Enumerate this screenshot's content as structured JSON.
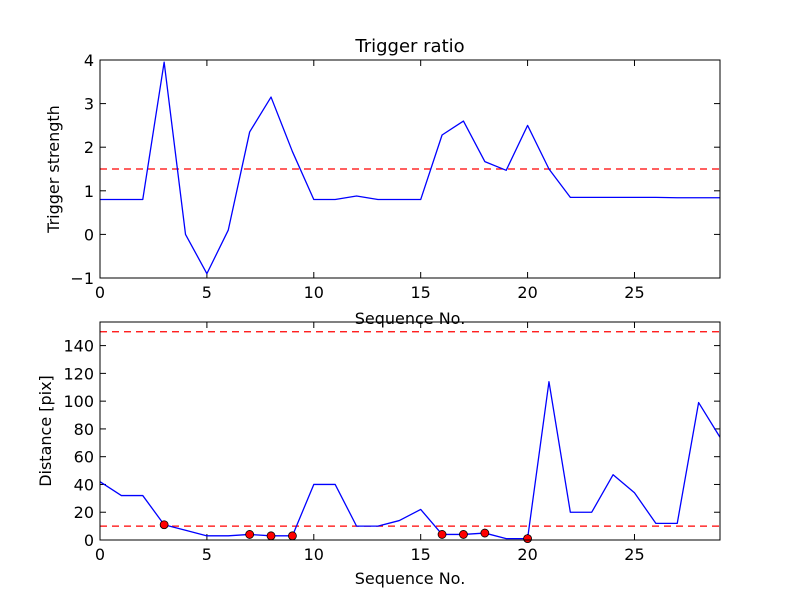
{
  "chart_data": [
    {
      "type": "line",
      "title": "Trigger ratio",
      "xlabel": "Sequence No.",
      "ylabel": "Trigger strength",
      "xlim": [
        0,
        29
      ],
      "ylim": [
        -1,
        4
      ],
      "xticks": [
        0,
        5,
        10,
        15,
        20,
        25
      ],
      "yticks": [
        -1,
        0,
        1,
        2,
        3,
        4
      ],
      "grid": false,
      "line_color": "#0000ff",
      "threshold_color": "#ff0000",
      "series": [
        {
          "x": [
            0,
            1,
            2,
            3,
            4,
            5,
            6,
            7,
            8,
            9,
            10,
            11,
            12,
            13,
            14,
            15,
            16,
            17,
            18,
            19,
            20,
            21,
            22,
            23,
            24,
            25,
            26,
            27,
            28,
            29
          ],
          "values": [
            0.8,
            0.8,
            0.8,
            3.95,
            0.0,
            -0.9,
            0.1,
            2.35,
            3.15,
            1.9,
            0.8,
            0.8,
            0.88,
            0.8,
            0.8,
            0.8,
            2.28,
            2.6,
            1.67,
            1.47,
            2.5,
            1.5,
            0.85,
            0.85,
            0.85,
            0.85,
            0.85,
            0.84,
            0.84,
            0.84
          ]
        }
      ],
      "thresholds": [
        1.5
      ]
    },
    {
      "type": "line",
      "title": "",
      "xlabel": "Sequence No.",
      "ylabel": "Distance [pix]",
      "xlim": [
        0,
        29
      ],
      "ylim": [
        0,
        157
      ],
      "xticks": [
        0,
        5,
        10,
        15,
        20,
        25
      ],
      "yticks": [
        0,
        20,
        40,
        60,
        80,
        100,
        120,
        140
      ],
      "grid": false,
      "line_color": "#0000ff",
      "threshold_color": "#ff0000",
      "marker_color": "#ff0000",
      "series": [
        {
          "x": [
            0,
            1,
            2,
            3,
            4,
            5,
            6,
            7,
            8,
            9,
            10,
            11,
            12,
            13,
            14,
            15,
            16,
            17,
            18,
            19,
            20,
            21,
            22,
            23,
            24,
            25,
            26,
            27,
            28,
            29
          ],
          "values": [
            42,
            32,
            32,
            11,
            7,
            3,
            3,
            4,
            3,
            3,
            40,
            40,
            10,
            10,
            14,
            22,
            4,
            4,
            5,
            1,
            1,
            114,
            20,
            20,
            47,
            34,
            12,
            12,
            99,
            74
          ]
        }
      ],
      "markers": {
        "x": [
          3,
          7,
          8,
          9,
          16,
          17,
          18,
          20
        ],
        "values": [
          11,
          4,
          3,
          3,
          4,
          4,
          5,
          1
        ]
      },
      "thresholds": [
        10,
        150
      ]
    }
  ]
}
